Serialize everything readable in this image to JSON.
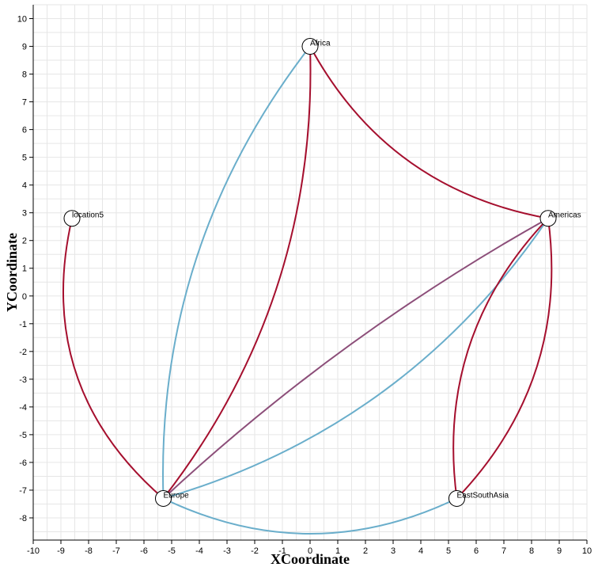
{
  "chart_data": {
    "type": "network",
    "xlabel": "XCoordinate",
    "ylabel": "YCoordinate",
    "xlim": [
      -10,
      10
    ],
    "ylim": [
      -8.8,
      10.5
    ],
    "x_ticks": [
      -10,
      -9,
      -8,
      -7,
      -6,
      -5,
      -4,
      -3,
      -2,
      -1,
      0,
      1,
      2,
      3,
      4,
      5,
      6,
      7,
      8,
      9,
      10
    ],
    "y_ticks": [
      -8,
      -7,
      -6,
      -5,
      -4,
      -3,
      -2,
      -1,
      0,
      1,
      2,
      3,
      4,
      5,
      6,
      7,
      8,
      9,
      10
    ],
    "grid": true,
    "nodes": [
      {
        "id": "location5",
        "label": "location5",
        "x": -8.6,
        "y": 2.8
      },
      {
        "id": "africa",
        "label": "Africa",
        "x": 0.0,
        "y": 9.0
      },
      {
        "id": "americas",
        "label": "Americas",
        "x": 8.6,
        "y": 2.8
      },
      {
        "id": "europe",
        "label": "Europe",
        "x": -5.3,
        "y": -7.3
      },
      {
        "id": "eastsouthasia",
        "label": "EastSouthAsia",
        "x": 5.3,
        "y": -7.3
      }
    ],
    "edges": [
      {
        "source": "location5",
        "target": "europe",
        "color": "#a50f2e",
        "bend": 0.15
      },
      {
        "source": "europe",
        "target": "africa",
        "color": "#a50f2e",
        "bend": 0.09
      },
      {
        "source": "europe",
        "target": "africa",
        "color": "#6aaecb",
        "bend": -0.09
      },
      {
        "source": "africa",
        "target": "americas",
        "color": "#a50f2e",
        "bend": 0.12
      },
      {
        "source": "europe",
        "target": "americas",
        "color": "#6aaecb",
        "bend": 0.09
      },
      {
        "source": "europe",
        "target": "americas",
        "color": "#8c4e79",
        "bend": -0.03
      },
      {
        "source": "europe",
        "target": "eastsouthasia",
        "color": "#6aaecb",
        "bend": 0.12
      },
      {
        "source": "eastsouthasia",
        "target": "americas",
        "color": "#a50f2e",
        "bend": 0.12
      },
      {
        "source": "eastsouthasia",
        "target": "americas",
        "color": "#a50f2e",
        "bend": -0.12
      }
    ]
  }
}
